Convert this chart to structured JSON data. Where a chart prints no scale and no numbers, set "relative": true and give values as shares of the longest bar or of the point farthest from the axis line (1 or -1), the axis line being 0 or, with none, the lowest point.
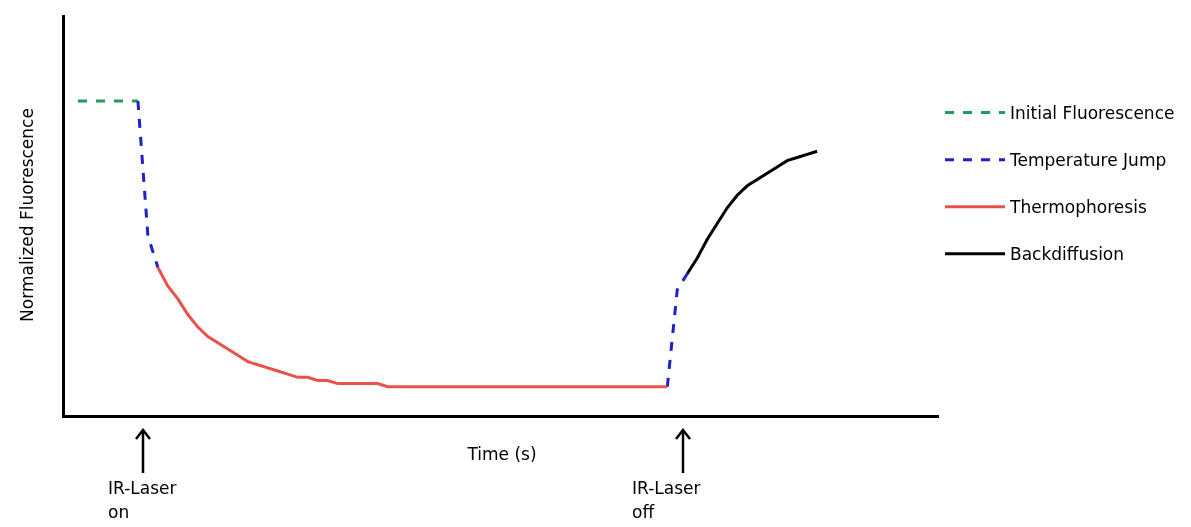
{
  "chart_data": {
    "type": "line",
    "relative": true,
    "xlabel": "Time (s)",
    "ylabel": "Normalized Fluorescence",
    "legend": "right",
    "marker": "none",
    "categories": [
      null,
      null,
      null,
      null,
      null,
      null,
      null,
      null,
      null,
      null,
      null,
      null,
      null,
      null,
      null,
      null,
      null,
      null,
      null,
      null,
      null,
      null,
      null,
      null,
      null,
      null,
      null,
      null,
      null,
      null,
      null,
      null,
      null,
      null,
      null,
      null,
      null,
      null,
      null,
      null,
      null,
      null,
      null,
      null,
      null,
      null,
      null,
      null,
      null,
      null,
      null,
      null,
      null,
      null,
      null,
      null,
      null,
      null,
      null,
      null,
      null,
      null,
      null,
      null,
      null,
      null,
      null,
      null,
      null,
      null,
      null,
      null,
      null,
      null,
      null
    ],
    "series": [
      {
        "name": "Initial Fluorescence",
        "color": "#1e9e5a",
        "line_style": "dashed",
        "values": [
          1,
          1,
          1,
          1,
          1,
          1,
          1,
          null,
          null,
          null,
          null,
          null,
          null,
          null,
          null,
          null,
          null,
          null,
          null,
          null,
          null,
          null,
          null,
          null,
          null,
          null,
          null,
          null,
          null,
          null,
          null,
          null,
          null,
          null,
          null,
          null,
          null,
          null,
          null,
          null,
          null,
          null,
          null,
          null,
          null,
          null,
          null,
          null,
          null,
          null,
          null,
          null,
          null,
          null,
          null,
          null,
          null,
          null,
          null,
          null,
          null,
          null,
          null,
          null,
          null,
          null,
          null,
          null,
          null,
          null,
          null,
          null,
          null,
          null,
          null
        ]
      },
      {
        "name": "Temperature Jump",
        "color": "#1f1fd0",
        "line_style": "dashed",
        "values": [
          null,
          null,
          null,
          null,
          null,
          null,
          1,
          0.57,
          0.47,
          null,
          null,
          null,
          null,
          null,
          null,
          null,
          null,
          null,
          null,
          null,
          null,
          null,
          null,
          null,
          null,
          null,
          null,
          null,
          null,
          null,
          null,
          null,
          null,
          null,
          null,
          null,
          null,
          null,
          null,
          null,
          null,
          null,
          null,
          null,
          null,
          null,
          null,
          null,
          null,
          null,
          null,
          null,
          null,
          null,
          null,
          null,
          null,
          null,
          null,
          0.09,
          0.4,
          0.45,
          null,
          null,
          null,
          null,
          null,
          null,
          null,
          null,
          null,
          null,
          null,
          null,
          null
        ]
      },
      {
        "name": "Thermophoresis",
        "color": "#e8524a",
        "line_style": "solid",
        "values": [
          null,
          null,
          null,
          null,
          null,
          null,
          null,
          null,
          0.47,
          0.41,
          0.37,
          0.32,
          0.28,
          0.25,
          0.23,
          0.21,
          0.19,
          0.17,
          0.16,
          0.15,
          0.14,
          0.13,
          0.12,
          0.12,
          0.11,
          0.11,
          0.1,
          0.1,
          0.1,
          0.1,
          0.1,
          0.09,
          0.09,
          0.09,
          0.09,
          0.09,
          0.09,
          0.09,
          0.09,
          0.09,
          0.09,
          0.09,
          0.09,
          0.09,
          0.09,
          0.09,
          0.09,
          0.09,
          0.09,
          0.09,
          0.09,
          0.09,
          0.09,
          0.09,
          0.09,
          0.09,
          0.09,
          0.09,
          0.09,
          0.09,
          null,
          null,
          null,
          null,
          null,
          null,
          null,
          null,
          null,
          null,
          null,
          null,
          null,
          null,
          null
        ]
      },
      {
        "name": "Backdiffusion",
        "color": "#000000",
        "line_style": "solid",
        "values": [
          null,
          null,
          null,
          null,
          null,
          null,
          null,
          null,
          null,
          null,
          null,
          null,
          null,
          null,
          null,
          null,
          null,
          null,
          null,
          null,
          null,
          null,
          null,
          null,
          null,
          null,
          null,
          null,
          null,
          null,
          null,
          null,
          null,
          null,
          null,
          null,
          null,
          null,
          null,
          null,
          null,
          null,
          null,
          null,
          null,
          null,
          null,
          null,
          null,
          null,
          null,
          null,
          null,
          null,
          null,
          null,
          null,
          null,
          null,
          null,
          null,
          0.45,
          0.5,
          0.56,
          0.61,
          0.66,
          0.7,
          0.73,
          0.75,
          0.77,
          0.79,
          0.81,
          0.82,
          0.83,
          0.84
        ]
      }
    ],
    "annotations": [
      "IR-Laser on",
      "IR-Laser off"
    ]
  }
}
